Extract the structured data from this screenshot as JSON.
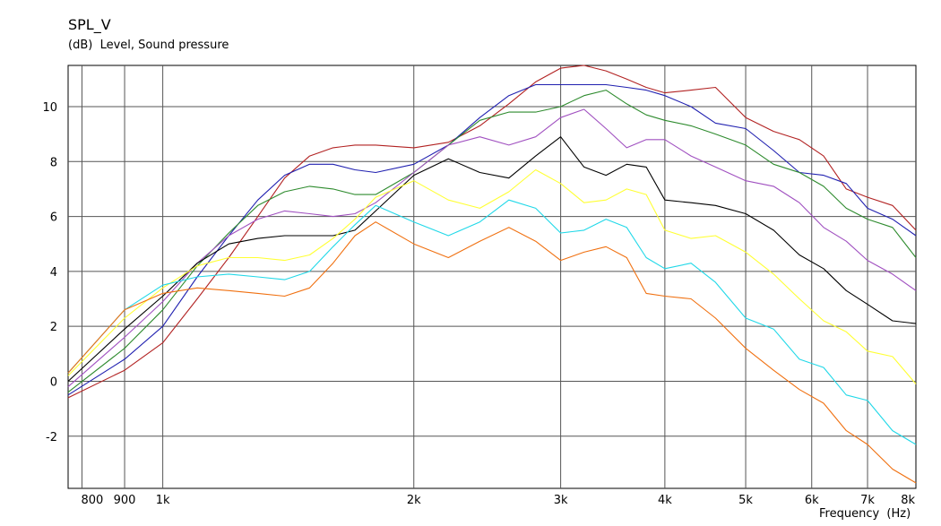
{
  "chart_data": {
    "type": "line",
    "title": "SPL_V",
    "subtitle": "(dB)  Level, Sound pressure",
    "xlabel": "Frequency  (Hz)",
    "ylabel": "(dB)  Level, Sound pressure",
    "x_scale": "log",
    "xlim": [
      770,
      8000
    ],
    "ylim": [
      -3.9,
      11.5
    ],
    "grid": true,
    "legend": "none",
    "x_ticks": [
      {
        "value": 800,
        "label": "800"
      },
      {
        "value": 900,
        "label": "900"
      },
      {
        "value": 1000,
        "label": "1k"
      },
      {
        "value": 2000,
        "label": "2k"
      },
      {
        "value": 3000,
        "label": "3k"
      },
      {
        "value": 4000,
        "label": "4k"
      },
      {
        "value": 5000,
        "label": "5k"
      },
      {
        "value": 6000,
        "label": "6k"
      },
      {
        "value": 7000,
        "label": "7k"
      },
      {
        "value": 8000,
        "label": "8k"
      }
    ],
    "y_ticks": [
      {
        "value": 10,
        "label": "10"
      },
      {
        "value": 8,
        "label": "8"
      },
      {
        "value": 6,
        "label": "6"
      },
      {
        "value": 4,
        "label": "4"
      },
      {
        "value": 2,
        "label": "2"
      },
      {
        "value": 0,
        "label": "0"
      },
      {
        "value": -2,
        "label": "-2"
      }
    ],
    "x": [
      770,
      900,
      1000,
      1100,
      1200,
      1300,
      1400,
      1500,
      1600,
      1700,
      1800,
      2000,
      2200,
      2400,
      2600,
      2800,
      3000,
      3200,
      3400,
      3600,
      3800,
      4000,
      4300,
      4600,
      5000,
      5400,
      5800,
      6200,
      6600,
      7000,
      7500,
      8000
    ],
    "series": [
      {
        "color": "#b22222",
        "values": [
          -0.6,
          0.4,
          1.4,
          3.0,
          4.5,
          6.0,
          7.4,
          8.2,
          8.5,
          8.6,
          8.6,
          8.5,
          8.7,
          9.3,
          10.1,
          10.9,
          11.4,
          11.5,
          11.3,
          11.0,
          10.7,
          10.5,
          10.6,
          10.7,
          9.6,
          9.1,
          8.8,
          8.2,
          7.0,
          6.7,
          6.4,
          5.5
        ]
      },
      {
        "color": "#2020b0",
        "values": [
          -0.5,
          0.8,
          2.0,
          3.8,
          5.3,
          6.6,
          7.5,
          7.9,
          7.9,
          7.7,
          7.6,
          7.9,
          8.6,
          9.6,
          10.4,
          10.8,
          10.8,
          10.8,
          10.8,
          10.7,
          10.6,
          10.4,
          10.0,
          9.4,
          9.2,
          8.4,
          7.6,
          7.5,
          7.2,
          6.3,
          5.9,
          5.3
        ]
      },
      {
        "color": "#2e8b2e",
        "values": [
          -0.4,
          1.2,
          2.6,
          4.2,
          5.4,
          6.4,
          6.9,
          7.1,
          7.0,
          6.8,
          6.8,
          7.6,
          8.6,
          9.5,
          9.8,
          9.8,
          10.0,
          10.4,
          10.6,
          10.1,
          9.7,
          9.5,
          9.3,
          9.0,
          8.6,
          7.9,
          7.6,
          7.1,
          6.3,
          5.9,
          5.6,
          4.5
        ]
      },
      {
        "color": "#a050c0",
        "values": [
          -0.2,
          1.6,
          2.9,
          4.3,
          5.3,
          5.9,
          6.2,
          6.1,
          6.0,
          6.1,
          6.5,
          7.6,
          8.6,
          8.9,
          8.6,
          8.9,
          9.6,
          9.9,
          9.2,
          8.5,
          8.8,
          8.8,
          8.2,
          7.8,
          7.3,
          7.1,
          6.5,
          5.6,
          5.1,
          4.4,
          3.9,
          3.3
        ]
      },
      {
        "color": "#000000",
        "values": [
          0.0,
          1.9,
          3.1,
          4.3,
          5.0,
          5.2,
          5.3,
          5.3,
          5.3,
          5.5,
          6.2,
          7.5,
          8.1,
          7.6,
          7.4,
          8.2,
          8.9,
          7.8,
          7.5,
          7.9,
          7.8,
          6.6,
          6.5,
          6.4,
          6.1,
          5.5,
          4.6,
          4.1,
          3.3,
          2.8,
          2.2,
          2.1
        ]
      },
      {
        "color": "#ffff33",
        "values": [
          0.2,
          2.3,
          3.4,
          4.2,
          4.5,
          4.5,
          4.4,
          4.6,
          5.2,
          5.9,
          6.7,
          7.3,
          6.6,
          6.3,
          6.9,
          7.7,
          7.2,
          6.5,
          6.6,
          7.0,
          6.8,
          5.5,
          5.2,
          5.3,
          4.7,
          3.9,
          3.0,
          2.2,
          1.8,
          1.1,
          0.9,
          -0.1
        ]
      },
      {
        "color": "#20d8e8",
        "values": [
          0.3,
          2.6,
          3.5,
          3.8,
          3.9,
          3.8,
          3.7,
          4.0,
          4.9,
          5.7,
          6.4,
          5.8,
          5.3,
          5.8,
          6.6,
          6.3,
          5.4,
          5.5,
          5.9,
          5.6,
          4.5,
          4.1,
          4.3,
          3.6,
          2.3,
          1.9,
          0.8,
          0.5,
          -0.5,
          -0.7,
          -1.8,
          -2.3
        ]
      },
      {
        "color": "#f07010",
        "values": [
          0.3,
          2.6,
          3.2,
          3.4,
          3.3,
          3.2,
          3.1,
          3.4,
          4.3,
          5.3,
          5.8,
          5.0,
          4.5,
          5.1,
          5.6,
          5.1,
          4.4,
          4.7,
          4.9,
          4.5,
          3.2,
          3.1,
          3.0,
          2.3,
          1.2,
          0.4,
          -0.3,
          -0.8,
          -1.8,
          -2.3,
          -3.2,
          -3.7
        ]
      }
    ]
  }
}
